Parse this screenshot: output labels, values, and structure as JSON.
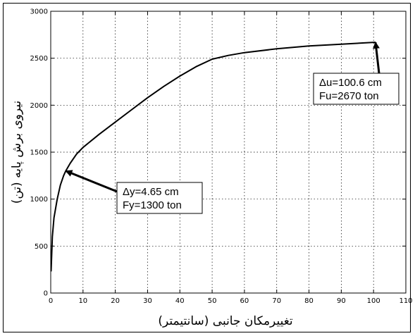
{
  "chart_data": {
    "type": "line",
    "title": "",
    "xlabel": "تغییرمکان جانبی (سانتیمتر)",
    "ylabel": "نیروی برش پایه (تن)",
    "xlim": [
      0,
      110
    ],
    "ylim": [
      0,
      3000
    ],
    "xticks": [
      0,
      10,
      20,
      30,
      40,
      50,
      60,
      70,
      80,
      90,
      100,
      110
    ],
    "yticks": [
      0,
      500,
      1000,
      1500,
      2000,
      2500,
      3000
    ],
    "grid": true,
    "series": [
      {
        "color": "#000000",
        "x": [
          0.1,
          0.5,
          1,
          2,
          3,
          4,
          4.65,
          6,
          8,
          10,
          15,
          20,
          25,
          30,
          35,
          40,
          45,
          50,
          55,
          60,
          70,
          80,
          90,
          100.6
        ],
        "y": [
          230,
          600,
          800,
          1000,
          1150,
          1250,
          1300,
          1380,
          1480,
          1550,
          1690,
          1820,
          1950,
          2080,
          2200,
          2310,
          2410,
          2490,
          2530,
          2560,
          2600,
          2630,
          2650,
          2670
        ]
      }
    ],
    "annotations": [
      {
        "lines": [
          "Δy=4.65 cm",
          "Fy=1300 ton"
        ],
        "target": [
          4.65,
          1300
        ]
      },
      {
        "lines": [
          "Δu=100.6 cm",
          "Fu=2670 ton"
        ],
        "target": [
          100.6,
          2670
        ]
      }
    ]
  }
}
